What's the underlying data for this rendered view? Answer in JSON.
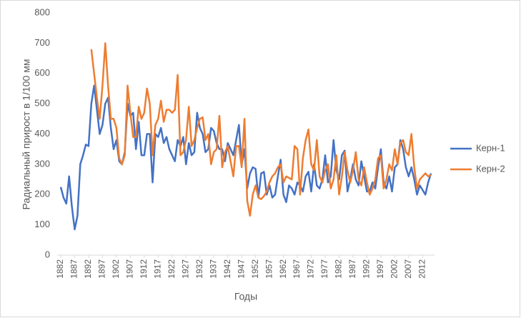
{
  "chart_data": {
    "type": "line",
    "ylabel": "Радиальный прирост в 1/100 мм",
    "xlabel": "Годы",
    "x": [
      1882,
      1883,
      1884,
      1885,
      1886,
      1887,
      1888,
      1889,
      1890,
      1891,
      1892,
      1893,
      1894,
      1895,
      1896,
      1897,
      1898,
      1899,
      1900,
      1901,
      1902,
      1903,
      1904,
      1905,
      1906,
      1907,
      1908,
      1909,
      1910,
      1911,
      1912,
      1913,
      1914,
      1915,
      1916,
      1917,
      1918,
      1919,
      1920,
      1921,
      1922,
      1923,
      1924,
      1925,
      1926,
      1927,
      1928,
      1929,
      1930,
      1931,
      1932,
      1933,
      1934,
      1935,
      1936,
      1937,
      1938,
      1939,
      1940,
      1941,
      1942,
      1943,
      1944,
      1945,
      1946,
      1947,
      1948,
      1949,
      1950,
      1951,
      1952,
      1953,
      1954,
      1955,
      1956,
      1957,
      1958,
      1959,
      1960,
      1961,
      1962,
      1963,
      1964,
      1965,
      1966,
      1967,
      1968,
      1969,
      1970,
      1971,
      1972,
      1973,
      1974,
      1975,
      1976,
      1977,
      1978,
      1979,
      1980,
      1981,
      1982,
      1983,
      1984,
      1985,
      1986,
      1987,
      1988,
      1989,
      1990,
      1991,
      1992,
      1993,
      1994,
      1995,
      1996,
      1997,
      1998,
      1999,
      2000,
      2001,
      2002,
      2003,
      2004,
      2005,
      2006,
      2007,
      2008,
      2009,
      2010,
      2011,
      2012,
      2013,
      2014,
      2015
    ],
    "series": [
      {
        "name": "Керн-1",
        "color": "#4472c4",
        "values": [
          225,
          190,
          170,
          260,
          160,
          85,
          130,
          300,
          330,
          365,
          360,
          500,
          560,
          480,
          400,
          430,
          500,
          520,
          420,
          350,
          380,
          310,
          300,
          340,
          500,
          460,
          470,
          350,
          440,
          330,
          330,
          400,
          400,
          240,
          400,
          390,
          420,
          370,
          390,
          350,
          330,
          310,
          380,
          360,
          390,
          300,
          370,
          330,
          340,
          470,
          420,
          400,
          340,
          350,
          420,
          410,
          370,
          350,
          350,
          310,
          370,
          350,
          330,
          380,
          430,
          300,
          350,
          220,
          270,
          290,
          285,
          190,
          270,
          275,
          200,
          230,
          190,
          200,
          260,
          315,
          200,
          175,
          230,
          220,
          200,
          240,
          230,
          210,
          260,
          275,
          210,
          300,
          230,
          220,
          250,
          330,
          240,
          260,
          380,
          280,
          250,
          330,
          345,
          210,
          250,
          300,
          250,
          230,
          310,
          260,
          210,
          210,
          240,
          220,
          290,
          350,
          240,
          220,
          260,
          210,
          290,
          300,
          380,
          350,
          290,
          260,
          290,
          250,
          200,
          230,
          215,
          200,
          240,
          270
        ]
      },
      {
        "name": "Керн-2",
        "color": "#ed7d31",
        "values": [
          null,
          null,
          null,
          null,
          null,
          null,
          null,
          null,
          null,
          null,
          null,
          680,
          600,
          520,
          450,
          560,
          700,
          560,
          450,
          450,
          420,
          320,
          300,
          330,
          560,
          470,
          390,
          390,
          490,
          450,
          470,
          550,
          500,
          330,
          430,
          450,
          510,
          440,
          480,
          480,
          470,
          480,
          595,
          330,
          340,
          380,
          490,
          360,
          380,
          420,
          450,
          455,
          380,
          400,
          300,
          340,
          350,
          460,
          290,
          340,
          360,
          310,
          260,
          360,
          360,
          290,
          450,
          180,
          130,
          200,
          230,
          190,
          185,
          195,
          210,
          240,
          260,
          270,
          290,
          300,
          240,
          260,
          255,
          250,
          360,
          350,
          200,
          320,
          380,
          415,
          300,
          280,
          380,
          260,
          240,
          280,
          300,
          220,
          250,
          330,
          200,
          260,
          340,
          280,
          240,
          280,
          340,
          250,
          230,
          290,
          240,
          200,
          220,
          250,
          320,
          330,
          220,
          250,
          300,
          280,
          350,
          300,
          370,
          380,
          340,
          330,
          400,
          290,
          220,
          250,
          260,
          270,
          260,
          265
        ]
      }
    ],
    "xlim": [
      1882,
      2015
    ],
    "xticks": [
      1882,
      1887,
      1892,
      1897,
      1902,
      1907,
      1912,
      1917,
      1922,
      1927,
      1932,
      1937,
      1942,
      1947,
      1952,
      1957,
      1962,
      1967,
      1972,
      1977,
      1982,
      1987,
      1992,
      1997,
      2002,
      2007,
      2012
    ],
    "ylim": [
      0,
      800
    ],
    "yticks": [
      0,
      100,
      200,
      300,
      400,
      500,
      600,
      700,
      800
    ],
    "grid": false,
    "legend": "right"
  }
}
